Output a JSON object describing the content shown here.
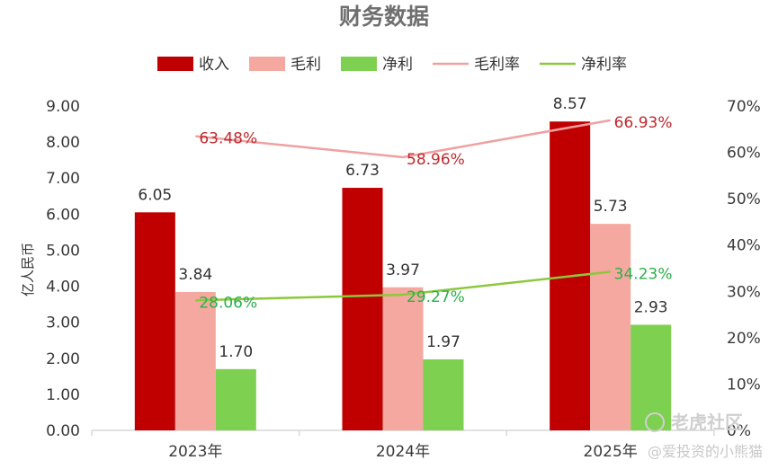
{
  "watermark": {
    "brand": "老虎社区",
    "author": "@爱投资的小熊猫"
  },
  "chart_data": {
    "type": "bar",
    "title": "财务数据",
    "ylabel": "亿人民币",
    "categories": [
      "2023年",
      "2024年",
      "2025年"
    ],
    "ylim": [
      0,
      9
    ],
    "yticks": [
      "0.00",
      "1.00",
      "2.00",
      "3.00",
      "4.00",
      "5.00",
      "6.00",
      "7.00",
      "8.00",
      "9.00"
    ],
    "y2lim": [
      0,
      70
    ],
    "y2ticks": [
      "0%",
      "10%",
      "20%",
      "30%",
      "40%",
      "50%",
      "60%",
      "70%"
    ],
    "series": [
      {
        "name": "收入",
        "type": "bar",
        "color": "#c00000",
        "values": [
          6.05,
          6.73,
          8.57
        ],
        "labels": [
          "6.05",
          "6.73",
          "8.57"
        ]
      },
      {
        "name": "毛利",
        "type": "bar",
        "color": "#f4a8a0",
        "values": [
          3.84,
          3.97,
          5.73
        ],
        "labels": [
          "3.84",
          "3.97",
          "5.73"
        ]
      },
      {
        "name": "净利",
        "type": "bar",
        "color": "#7ed050",
        "values": [
          1.7,
          1.97,
          2.93
        ],
        "labels": [
          "1.70",
          "1.97",
          "2.93"
        ]
      },
      {
        "name": "毛利率",
        "type": "line",
        "axis": "right",
        "color": "#f0a0a0",
        "label_color": "#c0282d",
        "values": [
          63.48,
          58.96,
          66.93
        ],
        "labels": [
          "63.48%",
          "58.96%",
          "66.93%"
        ]
      },
      {
        "name": "净利率",
        "type": "line",
        "axis": "right",
        "color": "#8cc83c",
        "label_color": "#2ab04a",
        "values": [
          28.06,
          29.27,
          34.23
        ],
        "labels": [
          "28.06%",
          "29.27%",
          "34.23%"
        ]
      }
    ],
    "legend_position": "top"
  }
}
